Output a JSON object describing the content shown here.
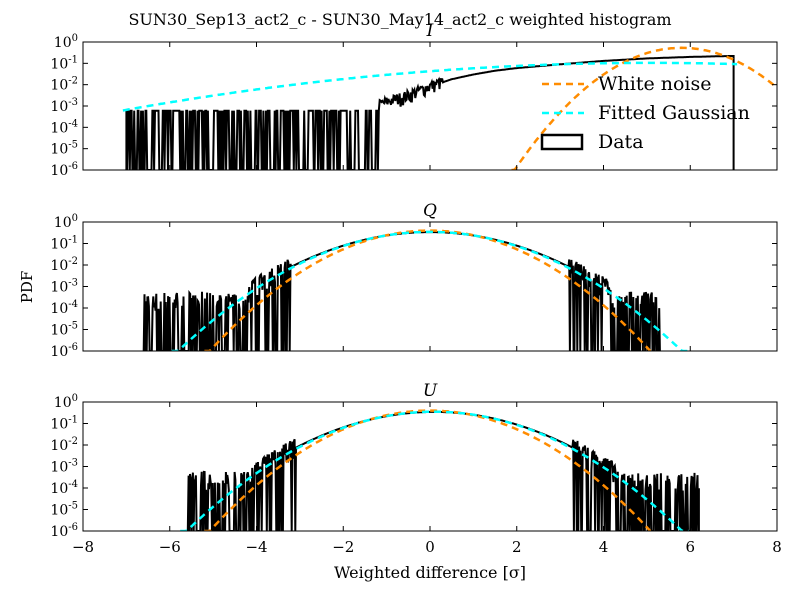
{
  "figure": {
    "suptitle": "SUN30_Sep13_act2_c - SUN30_May14_act2_c weighted histogram",
    "ylabel": "PDF",
    "xlabel": "Weighted difference [σ]"
  },
  "legend": {
    "items": [
      {
        "label": "White noise",
        "color": "#ff8c00",
        "style": "dashed"
      },
      {
        "label": "Fitted Gaussian",
        "color": "#00ffff",
        "style": "dashed"
      },
      {
        "label": "Data",
        "color": "#000000",
        "style": "box"
      }
    ]
  },
  "chart_data": [
    {
      "type": "line",
      "title": "I",
      "xlim": [
        -8,
        8
      ],
      "ylim": [
        1e-06,
        1
      ],
      "yscale": "log",
      "xticks": [
        -8,
        -6,
        -4,
        -2,
        0,
        2,
        4,
        6,
        8
      ],
      "yticks": [
        {
          "base": "10",
          "exp": "0",
          "v": 1
        },
        {
          "base": "10",
          "exp": "-1",
          "v": 0.1
        },
        {
          "base": "10",
          "exp": "-2",
          "v": 0.01
        },
        {
          "base": "10",
          "exp": "-3",
          "v": 0.001
        },
        {
          "base": "10",
          "exp": "-4",
          "v": 0.0001
        },
        {
          "base": "10",
          "exp": "-5",
          "v": 1e-05
        },
        {
          "base": "10",
          "exp": "-6",
          "v": 1e-06
        }
      ],
      "legend_placement": "lower-right",
      "series": [
        {
          "name": "White noise",
          "color": "#ff8c00",
          "kind": "gaussian",
          "mu": 5.8,
          "sigma": 0.75
        },
        {
          "name": "Fitted Gaussian",
          "color": "#00ffff",
          "kind": "gaussian",
          "mu": 5.1,
          "sigma": 3.8
        },
        {
          "name": "Data",
          "color": "#000000",
          "kind": "histogram",
          "points": [
            [
              -7.0,
              0.0006
            ],
            [
              -6.0,
              0.0006
            ],
            [
              -5.0,
              0.0006
            ],
            [
              -4.0,
              0.0006
            ],
            [
              -3.0,
              0.0006
            ],
            [
              -2.0,
              0.0006
            ],
            [
              -1.5,
              0.0006
            ],
            [
              -1.0,
              0.0015
            ],
            [
              -0.5,
              0.003
            ],
            [
              0,
              0.008
            ],
            [
              0.5,
              0.018
            ],
            [
              1.0,
              0.03
            ],
            [
              1.5,
              0.045
            ],
            [
              2,
              0.06
            ],
            [
              3,
              0.09
            ],
            [
              4,
              0.13
            ],
            [
              5,
              0.17
            ],
            [
              6,
              0.2
            ],
            [
              6.9,
              0.22
            ]
          ],
          "range": [
            -7.0,
            7.0
          ]
        }
      ]
    },
    {
      "type": "line",
      "title": "Q",
      "xlim": [
        -8,
        8
      ],
      "ylim": [
        1e-06,
        1
      ],
      "yscale": "log",
      "xticks": [
        -8,
        -6,
        -4,
        -2,
        0,
        2,
        4,
        6,
        8
      ],
      "yticks": [
        {
          "base": "10",
          "exp": "0",
          "v": 1
        },
        {
          "base": "10",
          "exp": "-1",
          "v": 0.1
        },
        {
          "base": "10",
          "exp": "-2",
          "v": 0.01
        },
        {
          "base": "10",
          "exp": "-3",
          "v": 0.001
        },
        {
          "base": "10",
          "exp": "-4",
          "v": 0.0001
        },
        {
          "base": "10",
          "exp": "-5",
          "v": 1e-05
        },
        {
          "base": "10",
          "exp": "-6",
          "v": 1e-06
        }
      ],
      "series": [
        {
          "name": "White noise",
          "color": "#ff8c00",
          "kind": "gaussian",
          "mu": 0.0,
          "sigma": 1.0
        },
        {
          "name": "Fitted Gaussian",
          "color": "#00ffff",
          "kind": "gaussian",
          "mu": 0.0,
          "sigma": 1.15
        },
        {
          "name": "Data",
          "color": "#000000",
          "kind": "histogram",
          "range": [
            -6.6,
            5.3
          ]
        }
      ]
    },
    {
      "type": "line",
      "title": "U",
      "xlim": [
        -8,
        8
      ],
      "ylim": [
        1e-06,
        1
      ],
      "yscale": "log",
      "xticks": [
        -8,
        -6,
        -4,
        -2,
        0,
        2,
        4,
        6,
        8
      ],
      "yticks": [
        {
          "base": "10",
          "exp": "0",
          "v": 1
        },
        {
          "base": "10",
          "exp": "-1",
          "v": 0.1
        },
        {
          "base": "10",
          "exp": "-2",
          "v": 0.01
        },
        {
          "base": "10",
          "exp": "-3",
          "v": 0.001
        },
        {
          "base": "10",
          "exp": "-4",
          "v": 0.0001
        },
        {
          "base": "10",
          "exp": "-5",
          "v": 1e-05
        },
        {
          "base": "10",
          "exp": "-6",
          "v": 1e-06
        }
      ],
      "series": [
        {
          "name": "White noise",
          "color": "#ff8c00",
          "kind": "gaussian",
          "mu": 0.0,
          "sigma": 1.0
        },
        {
          "name": "Fitted Gaussian",
          "color": "#00ffff",
          "kind": "gaussian",
          "mu": 0.1,
          "sigma": 1.13
        },
        {
          "name": "Data",
          "color": "#000000",
          "kind": "histogram",
          "range": [
            -5.6,
            6.2
          ]
        }
      ]
    }
  ]
}
